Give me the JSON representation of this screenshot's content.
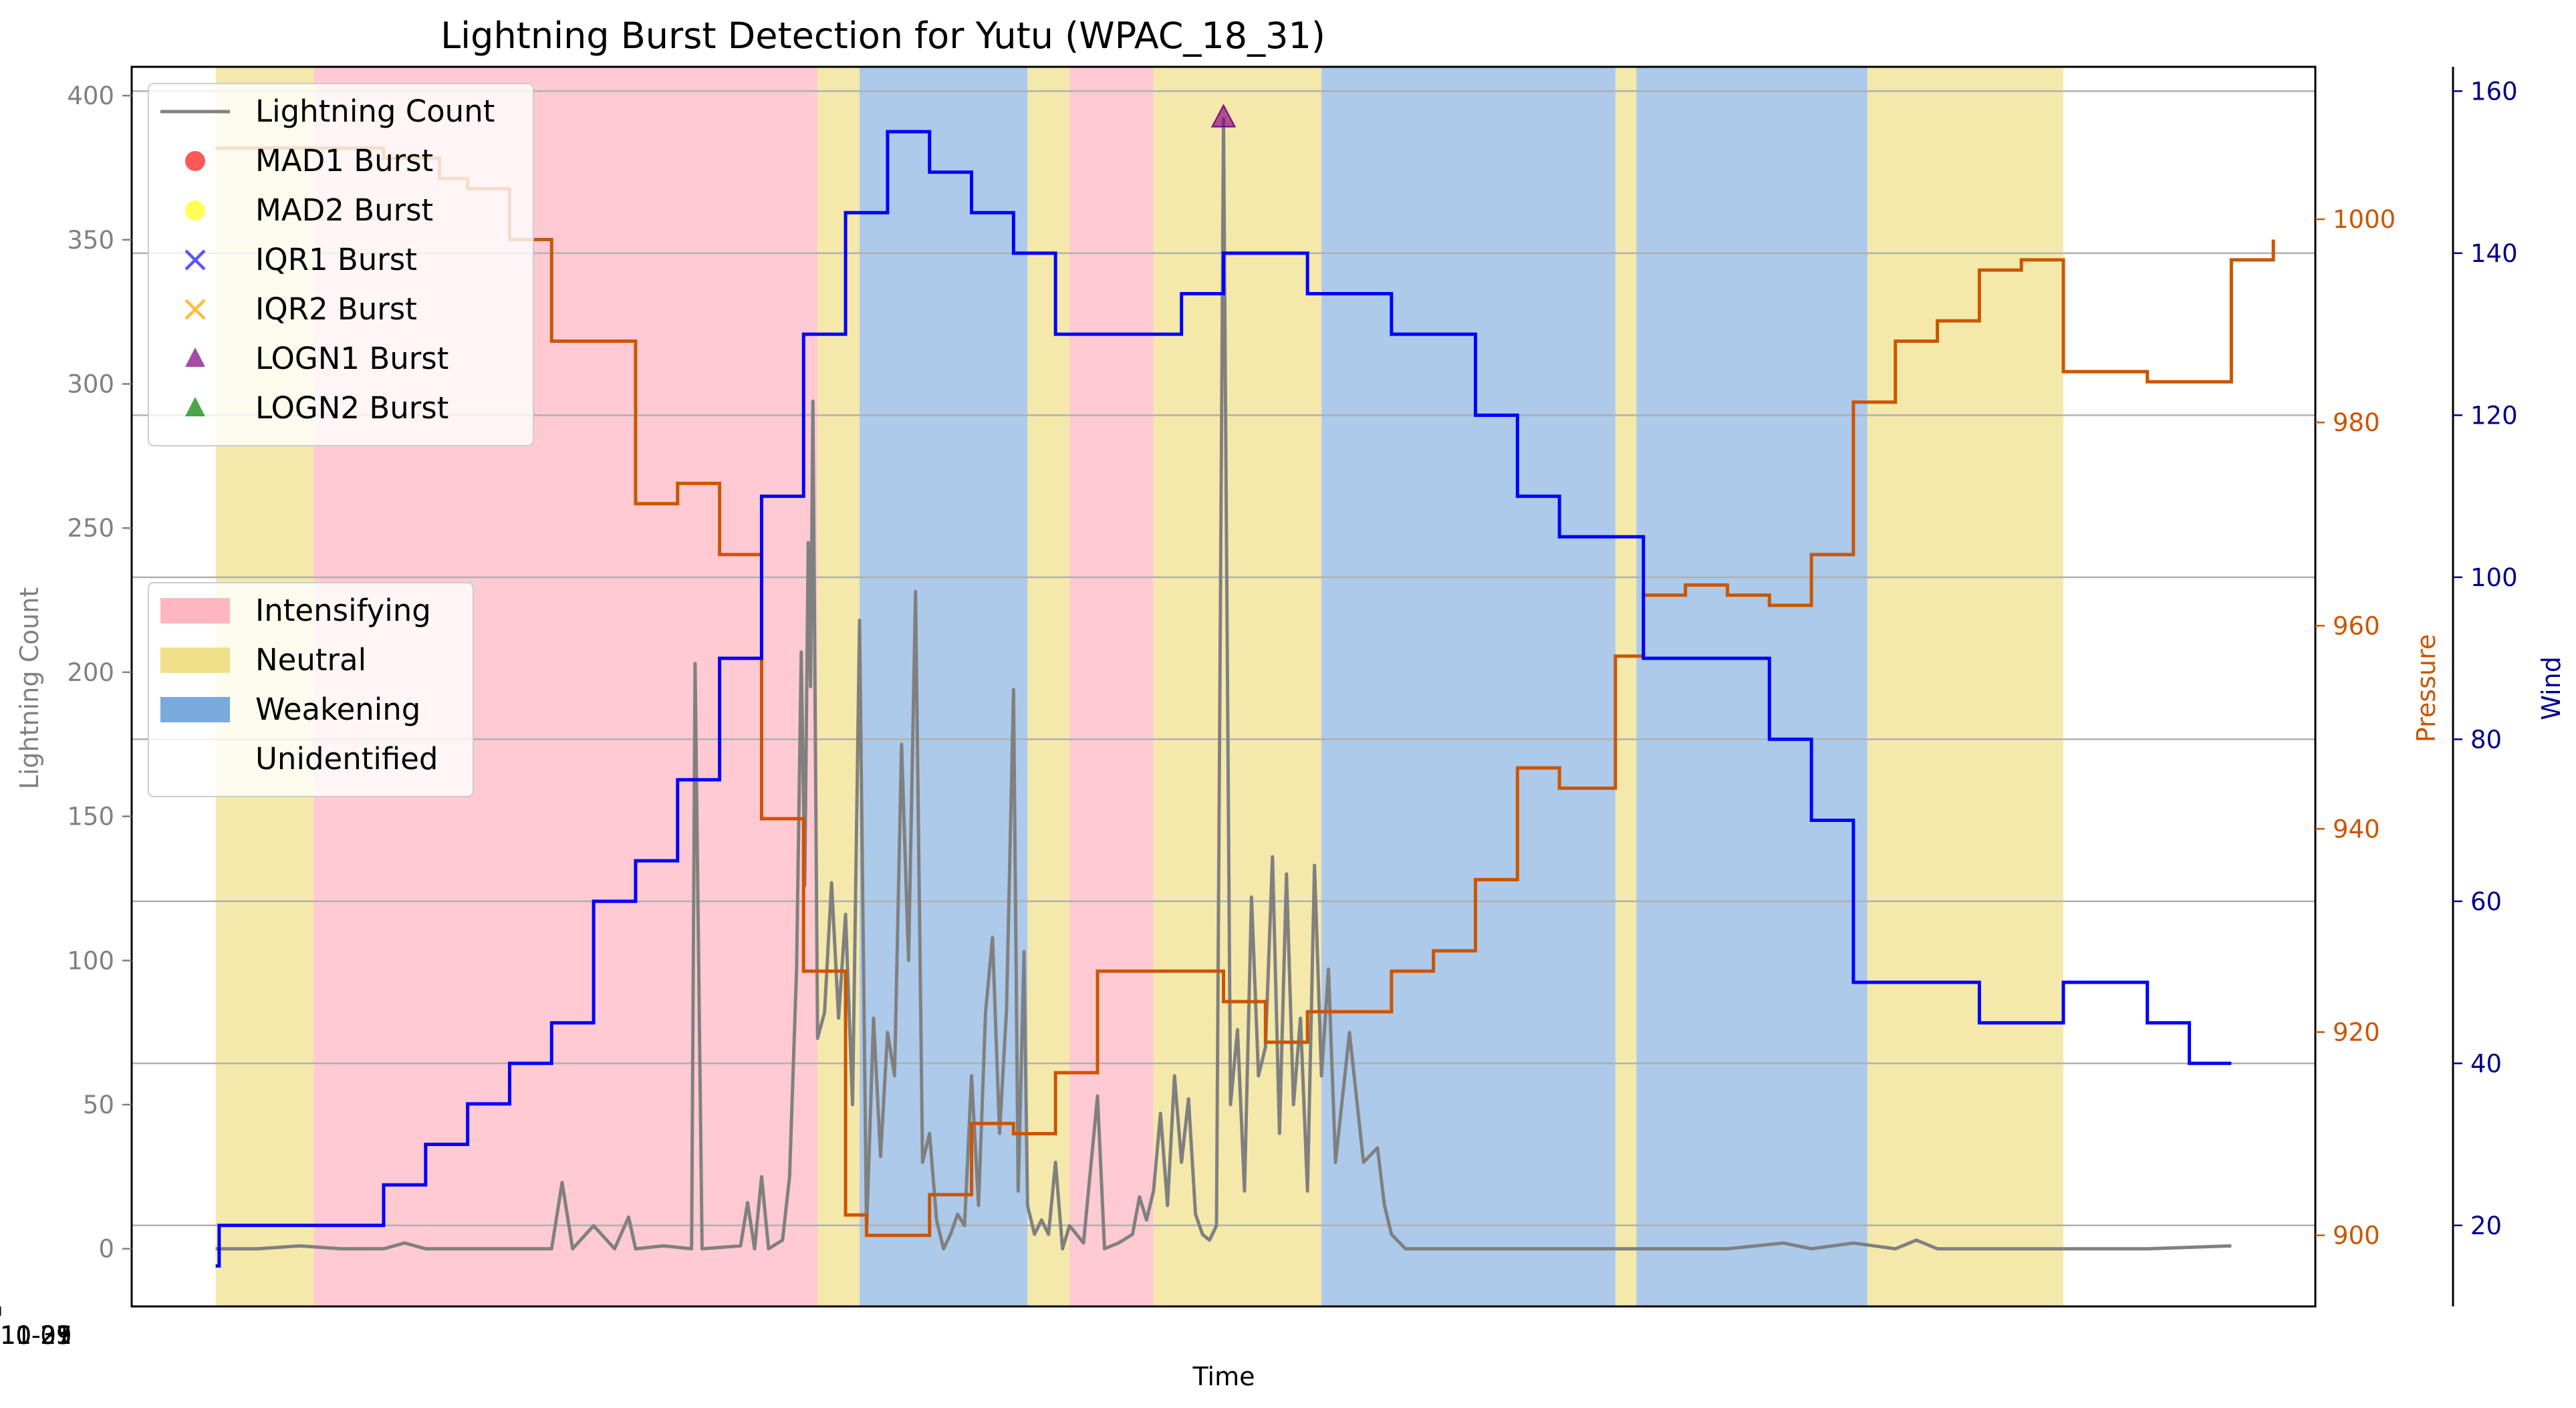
{
  "chart_data": {
    "type": "line",
    "title": "Lightning Burst Detection for Yutu (WPAC_18_31)",
    "xlabel": "Time",
    "ylabel": "Lightning Count",
    "y2label": "Pressure",
    "y3label": "Wind",
    "xlim": [
      "2018-10-20 00:00",
      "2018-11-02 00:00"
    ],
    "ylim": [
      -20,
      410
    ],
    "y2lim": [
      893,
      1015
    ],
    "y3lim": [
      10,
      163
    ],
    "grid": "horizontal lines at Wind ticks",
    "x_ticks": [
      "2018-10-21",
      "2018-10-23",
      "2018-10-25",
      "2018-10-27",
      "2018-10-29",
      "2018-10-31",
      "2018-11-01"
    ],
    "x_tick_values": [
      "2018-10-21",
      "2018-10-23",
      "2018-10-25",
      "2018-10-27",
      "2018-10-29",
      "2018-10-31",
      "2018-11-01"
    ],
    "y_ticks": [
      0,
      50,
      100,
      150,
      200,
      250,
      300,
      350,
      400
    ],
    "y2_ticks": [
      900,
      920,
      940,
      960,
      980,
      1000
    ],
    "y3_ticks": [
      20,
      40,
      60,
      80,
      100,
      120,
      140,
      160
    ],
    "colors": {
      "lightning": "#808080",
      "pressure": "#cc5500",
      "wind": "#0000ff",
      "intensifying": "#ffb6c1",
      "neutral": "#f0e08a",
      "weakening": "#7aaadd",
      "mad1": "#ff2020",
      "mad2": "#ffff20",
      "iqr1": "#2020ff",
      "iqr2": "#ffa500",
      "logn1": "#800080",
      "logn2": "#008000"
    },
    "legend_markers": {
      "placement": "upper left",
      "entries": [
        "Lightning Count",
        "MAD1 Burst",
        "MAD2 Burst",
        "IQR1 Burst",
        "IQR2 Burst",
        "LOGN1 Burst",
        "LOGN2 Burst"
      ]
    },
    "legend_phases": {
      "placement": "center left",
      "entries": [
        "Intensifying",
        "Neutral",
        "Weakening",
        "Unidentified"
      ]
    },
    "phases": [
      {
        "start": "2018-10-20 12:00",
        "end": "2018-10-21 02:00",
        "phase": "Neutral"
      },
      {
        "start": "2018-10-21 02:00",
        "end": "2018-10-24 02:00",
        "phase": "Intensifying"
      },
      {
        "start": "2018-10-24 02:00",
        "end": "2018-10-24 08:00",
        "phase": "Neutral"
      },
      {
        "start": "2018-10-24 08:00",
        "end": "2018-10-25 08:00",
        "phase": "Weakening"
      },
      {
        "start": "2018-10-25 08:00",
        "end": "2018-10-25 14:00",
        "phase": "Neutral"
      },
      {
        "start": "2018-10-25 14:00",
        "end": "2018-10-26 02:00",
        "phase": "Intensifying"
      },
      {
        "start": "2018-10-26 02:00",
        "end": "2018-10-27 02:00",
        "phase": "Neutral"
      },
      {
        "start": "2018-10-27 02:00",
        "end": "2018-10-28 20:00",
        "phase": "Weakening"
      },
      {
        "start": "2018-10-28 20:00",
        "end": "2018-10-28 23:00",
        "phase": "Neutral"
      },
      {
        "start": "2018-10-28 23:00",
        "end": "2018-10-30 08:00",
        "phase": "Weakening"
      },
      {
        "start": "2018-10-30 08:00",
        "end": "2018-10-31 12:00",
        "phase": "Neutral"
      }
    ],
    "series": [
      {
        "name": "Lightning Count",
        "style": "line",
        "points": [
          [
            "2018-10-20 12:00",
            0
          ],
          [
            "2018-10-20 18:00",
            0
          ],
          [
            "2018-10-21 00:00",
            1
          ],
          [
            "2018-10-21 06:00",
            0
          ],
          [
            "2018-10-21 12:00",
            0
          ],
          [
            "2018-10-21 15:00",
            2
          ],
          [
            "2018-10-21 18:00",
            0
          ],
          [
            "2018-10-22 00:00",
            0
          ],
          [
            "2018-10-22 12:00",
            0
          ],
          [
            "2018-10-22 13:30",
            23
          ],
          [
            "2018-10-22 15:00",
            0
          ],
          [
            "2018-10-22 18:00",
            8
          ],
          [
            "2018-10-22 21:00",
            0
          ],
          [
            "2018-10-22 23:00",
            11
          ],
          [
            "2018-10-23 00:00",
            0
          ],
          [
            "2018-10-23 04:00",
            1
          ],
          [
            "2018-10-23 08:00",
            0
          ],
          [
            "2018-10-23 08:30",
            203
          ],
          [
            "2018-10-23 09:30",
            0
          ],
          [
            "2018-10-23 15:00",
            1
          ],
          [
            "2018-10-23 16:00",
            16
          ],
          [
            "2018-10-23 17:00",
            0
          ],
          [
            "2018-10-23 18:00",
            25
          ],
          [
            "2018-10-23 19:00",
            0
          ],
          [
            "2018-10-23 21:00",
            3
          ],
          [
            "2018-10-23 22:00",
            25
          ],
          [
            "2018-10-23 23:00",
            97
          ],
          [
            "2018-10-23 23:40",
            207
          ],
          [
            "2018-10-24 00:10",
            126
          ],
          [
            "2018-10-24 00:40",
            245
          ],
          [
            "2018-10-24 01:00",
            195
          ],
          [
            "2018-10-24 01:20",
            294
          ],
          [
            "2018-10-24 02:00",
            73
          ],
          [
            "2018-10-24 03:00",
            82
          ],
          [
            "2018-10-24 04:00",
            127
          ],
          [
            "2018-10-24 05:00",
            80
          ],
          [
            "2018-10-24 06:00",
            116
          ],
          [
            "2018-10-24 07:00",
            50
          ],
          [
            "2018-10-24 08:00",
            218
          ],
          [
            "2018-10-24 09:00",
            6
          ],
          [
            "2018-10-24 10:00",
            80
          ],
          [
            "2018-10-24 11:00",
            32
          ],
          [
            "2018-10-24 12:00",
            75
          ],
          [
            "2018-10-24 13:00",
            60
          ],
          [
            "2018-10-24 14:00",
            175
          ],
          [
            "2018-10-24 15:00",
            100
          ],
          [
            "2018-10-24 16:00",
            228
          ],
          [
            "2018-10-24 17:00",
            30
          ],
          [
            "2018-10-24 18:00",
            40
          ],
          [
            "2018-10-24 19:00",
            10
          ],
          [
            "2018-10-24 20:00",
            0
          ],
          [
            "2018-10-24 21:00",
            5
          ],
          [
            "2018-10-24 22:00",
            12
          ],
          [
            "2018-10-24 23:00",
            8
          ],
          [
            "2018-10-25 00:00",
            60
          ],
          [
            "2018-10-25 01:00",
            15
          ],
          [
            "2018-10-25 02:00",
            82
          ],
          [
            "2018-10-25 03:00",
            108
          ],
          [
            "2018-10-25 04:00",
            40
          ],
          [
            "2018-10-25 05:00",
            83
          ],
          [
            "2018-10-25 06:00",
            194
          ],
          [
            "2018-10-25 06:40",
            20
          ],
          [
            "2018-10-25 07:30",
            103
          ],
          [
            "2018-10-25 08:00",
            15
          ],
          [
            "2018-10-25 09:00",
            5
          ],
          [
            "2018-10-25 10:00",
            10
          ],
          [
            "2018-10-25 11:00",
            5
          ],
          [
            "2018-10-25 12:00",
            30
          ],
          [
            "2018-10-25 13:00",
            0
          ],
          [
            "2018-10-25 14:00",
            8
          ],
          [
            "2018-10-25 16:00",
            2
          ],
          [
            "2018-10-25 18:00",
            53
          ],
          [
            "2018-10-25 19:00",
            0
          ],
          [
            "2018-10-25 21:00",
            2
          ],
          [
            "2018-10-25 23:00",
            5
          ],
          [
            "2018-10-26 00:00",
            18
          ],
          [
            "2018-10-26 01:00",
            10
          ],
          [
            "2018-10-26 02:00",
            20
          ],
          [
            "2018-10-26 03:00",
            47
          ],
          [
            "2018-10-26 04:00",
            15
          ],
          [
            "2018-10-26 05:00",
            60
          ],
          [
            "2018-10-26 06:00",
            30
          ],
          [
            "2018-10-26 07:00",
            52
          ],
          [
            "2018-10-26 08:00",
            12
          ],
          [
            "2018-10-26 09:00",
            5
          ],
          [
            "2018-10-26 10:00",
            3
          ],
          [
            "2018-10-26 11:00",
            8
          ],
          [
            "2018-10-26 12:00",
            392
          ],
          [
            "2018-10-26 13:00",
            50
          ],
          [
            "2018-10-26 14:00",
            76
          ],
          [
            "2018-10-26 15:00",
            20
          ],
          [
            "2018-10-26 16:00",
            122
          ],
          [
            "2018-10-26 17:00",
            60
          ],
          [
            "2018-10-26 18:00",
            70
          ],
          [
            "2018-10-26 19:00",
            136
          ],
          [
            "2018-10-26 20:00",
            40
          ],
          [
            "2018-10-26 21:00",
            130
          ],
          [
            "2018-10-26 22:00",
            50
          ],
          [
            "2018-10-26 23:00",
            80
          ],
          [
            "2018-10-27 00:00",
            20
          ],
          [
            "2018-10-27 01:00",
            133
          ],
          [
            "2018-10-27 02:00",
            60
          ],
          [
            "2018-10-27 03:00",
            97
          ],
          [
            "2018-10-27 04:00",
            30
          ],
          [
            "2018-10-27 06:00",
            75
          ],
          [
            "2018-10-27 08:00",
            30
          ],
          [
            "2018-10-27 10:00",
            35
          ],
          [
            "2018-10-27 11:00",
            15
          ],
          [
            "2018-10-27 12:00",
            5
          ],
          [
            "2018-10-27 14:00",
            0
          ],
          [
            "2018-10-27 18:00",
            0
          ],
          [
            "2018-10-28 00:00",
            0
          ],
          [
            "2018-10-28 12:00",
            0
          ],
          [
            "2018-10-28 18:00",
            0
          ],
          [
            "2018-10-29 00:00",
            0
          ],
          [
            "2018-10-29 12:00",
            0
          ],
          [
            "2018-10-29 20:00",
            2
          ],
          [
            "2018-10-30 00:00",
            0
          ],
          [
            "2018-10-30 06:00",
            2
          ],
          [
            "2018-10-30 12:00",
            0
          ],
          [
            "2018-10-30 15:00",
            3
          ],
          [
            "2018-10-30 18:00",
            0
          ],
          [
            "2018-10-31 00:00",
            0
          ],
          [
            "2018-10-31 12:00",
            0
          ],
          [
            "2018-11-01 00:00",
            0
          ],
          [
            "2018-11-01 12:00",
            1
          ]
        ]
      },
      {
        "name": "Pressure",
        "style": "step",
        "points": [
          [
            "2018-10-20 12:00",
            1007
          ],
          [
            "2018-10-21 12:00",
            1006
          ],
          [
            "2018-10-21 20:00",
            1004
          ],
          [
            "2018-10-22 00:00",
            1003
          ],
          [
            "2018-10-22 06:00",
            998
          ],
          [
            "2018-10-22 12:00",
            988
          ],
          [
            "2018-10-23 00:00",
            972
          ],
          [
            "2018-10-23 06:00",
            974
          ],
          [
            "2018-10-23 12:00",
            967
          ],
          [
            "2018-10-23 18:00",
            941
          ],
          [
            "2018-10-24 00:00",
            926
          ],
          [
            "2018-10-24 06:00",
            902
          ],
          [
            "2018-10-24 09:00",
            900
          ],
          [
            "2018-10-24 18:00",
            904
          ],
          [
            "2018-10-25 00:00",
            911
          ],
          [
            "2018-10-25 06:00",
            910
          ],
          [
            "2018-10-25 12:00",
            916
          ],
          [
            "2018-10-25 18:00",
            926
          ],
          [
            "2018-10-26 12:00",
            923
          ],
          [
            "2018-10-26 18:00",
            919
          ],
          [
            "2018-10-27 00:00",
            922
          ],
          [
            "2018-10-27 12:00",
            926
          ],
          [
            "2018-10-27 18:00",
            928
          ],
          [
            "2018-10-28 00:00",
            935
          ],
          [
            "2018-10-28 06:00",
            946
          ],
          [
            "2018-10-28 12:00",
            944
          ],
          [
            "2018-10-28 20:00",
            957
          ],
          [
            "2018-10-29 00:00",
            963
          ],
          [
            "2018-10-29 06:00",
            964
          ],
          [
            "2018-10-29 12:00",
            963
          ],
          [
            "2018-10-29 18:00",
            962
          ],
          [
            "2018-10-30 00:00",
            967
          ],
          [
            "2018-10-30 06:00",
            982
          ],
          [
            "2018-10-30 12:00",
            988
          ],
          [
            "2018-10-30 18:00",
            990
          ],
          [
            "2018-10-31 00:00",
            995
          ],
          [
            "2018-10-31 06:00",
            996
          ],
          [
            "2018-10-31 12:00",
            985
          ],
          [
            "2018-11-01 00:00",
            984
          ],
          [
            "2018-11-01 12:00",
            996
          ],
          [
            "2018-11-01 18:00",
            998
          ]
        ]
      },
      {
        "name": "Wind",
        "style": "step",
        "points": [
          [
            "2018-10-20 12:00",
            15
          ],
          [
            "2018-10-20 12:30",
            20
          ],
          [
            "2018-10-21 12:00",
            25
          ],
          [
            "2018-10-21 18:00",
            30
          ],
          [
            "2018-10-22 00:00",
            35
          ],
          [
            "2018-10-22 06:00",
            40
          ],
          [
            "2018-10-22 12:00",
            45
          ],
          [
            "2018-10-22 18:00",
            60
          ],
          [
            "2018-10-23 00:00",
            65
          ],
          [
            "2018-10-23 06:00",
            75
          ],
          [
            "2018-10-23 12:00",
            90
          ],
          [
            "2018-10-23 18:00",
            110
          ],
          [
            "2018-10-24 00:00",
            130
          ],
          [
            "2018-10-24 06:00",
            145
          ],
          [
            "2018-10-24 12:00",
            155
          ],
          [
            "2018-10-24 18:00",
            150
          ],
          [
            "2018-10-25 00:00",
            145
          ],
          [
            "2018-10-25 06:00",
            140
          ],
          [
            "2018-10-25 12:00",
            130
          ],
          [
            "2018-10-26 06:00",
            135
          ],
          [
            "2018-10-26 12:00",
            140
          ],
          [
            "2018-10-27 00:00",
            135
          ],
          [
            "2018-10-27 12:00",
            130
          ],
          [
            "2018-10-28 00:00",
            120
          ],
          [
            "2018-10-28 06:00",
            110
          ],
          [
            "2018-10-28 12:00",
            105
          ],
          [
            "2018-10-29 00:00",
            90
          ],
          [
            "2018-10-29 18:00",
            80
          ],
          [
            "2018-10-30 00:00",
            70
          ],
          [
            "2018-10-30 06:00",
            50
          ],
          [
            "2018-10-31 00:00",
            45
          ],
          [
            "2018-10-31 12:00",
            50
          ],
          [
            "2018-11-01 00:00",
            45
          ],
          [
            "2018-11-01 06:00",
            40
          ],
          [
            "2018-11-01 12:00",
            40
          ]
        ]
      },
      {
        "name": "LOGN1 Burst",
        "style": "marker",
        "points": [
          [
            "2018-10-26 12:00",
            392
          ]
        ]
      }
    ]
  }
}
